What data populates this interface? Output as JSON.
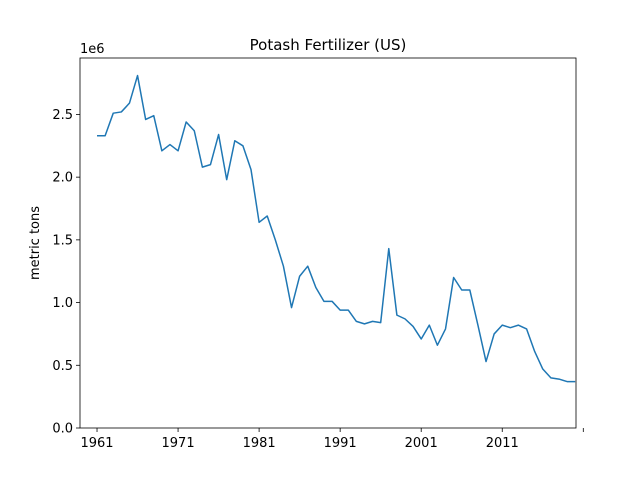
{
  "chart_data": {
    "type": "line",
    "title": "Potash Fertilizer (US)",
    "xlabel": "",
    "ylabel": "metric tons",
    "y_offset_text": "1e6",
    "y_multiplier": 1000000,
    "xlim": [
      1958.9,
      2020.1
    ],
    "ylim": [
      0,
      2950000
    ],
    "x_ticks": [
      1961,
      1971,
      1981,
      1991,
      2001,
      2011,
      2021
    ],
    "x_tick_labels": [
      "1961",
      "1971",
      "1981",
      "1991",
      "2001",
      "2011",
      ""
    ],
    "y_ticks": [
      0,
      500000,
      1000000,
      1500000,
      2000000,
      2500000
    ],
    "y_tick_labels": [
      "0.0",
      "0.5",
      "1.0",
      "1.5",
      "2.0",
      "2.5"
    ],
    "grid": false,
    "color": "#1f77b4",
    "series": [
      {
        "x": [
          1961,
          1962,
          1963,
          1964,
          1965,
          1966,
          1967,
          1968,
          1969,
          1970,
          1971,
          1972,
          1973,
          1974,
          1975,
          1976,
          1977,
          1978,
          1979,
          1980,
          1981,
          1982,
          1983,
          1984,
          1985,
          1986,
          1987,
          1988,
          1989,
          1990,
          1991,
          1992,
          1993,
          1994,
          1995,
          1996,
          1997,
          1998,
          1999,
          2000,
          2001,
          2002,
          2003,
          2004,
          2005,
          2006,
          2007,
          2008,
          2009,
          2010,
          2011,
          2012,
          2013,
          2014,
          2015,
          2016,
          2017,
          2018,
          2019,
          2020
        ],
        "y": [
          2330000,
          2330000,
          2510000,
          2520000,
          2590000,
          2810000,
          2460000,
          2490000,
          2210000,
          2260000,
          2210000,
          2440000,
          2370000,
          2080000,
          2100000,
          2340000,
          1980000,
          2290000,
          2250000,
          2060000,
          1640000,
          1690000,
          1500000,
          1290000,
          960000,
          1210000,
          1290000,
          1120000,
          1010000,
          1010000,
          940000,
          940000,
          850000,
          830000,
          850000,
          840000,
          1430000,
          900000,
          870000,
          810000,
          710000,
          820000,
          660000,
          790000,
          1200000,
          1100000,
          1100000,
          820000,
          530000,
          750000,
          820000,
          800000,
          820000,
          790000,
          610000,
          470000,
          400000,
          390000,
          370000,
          370000
        ]
      }
    ]
  }
}
